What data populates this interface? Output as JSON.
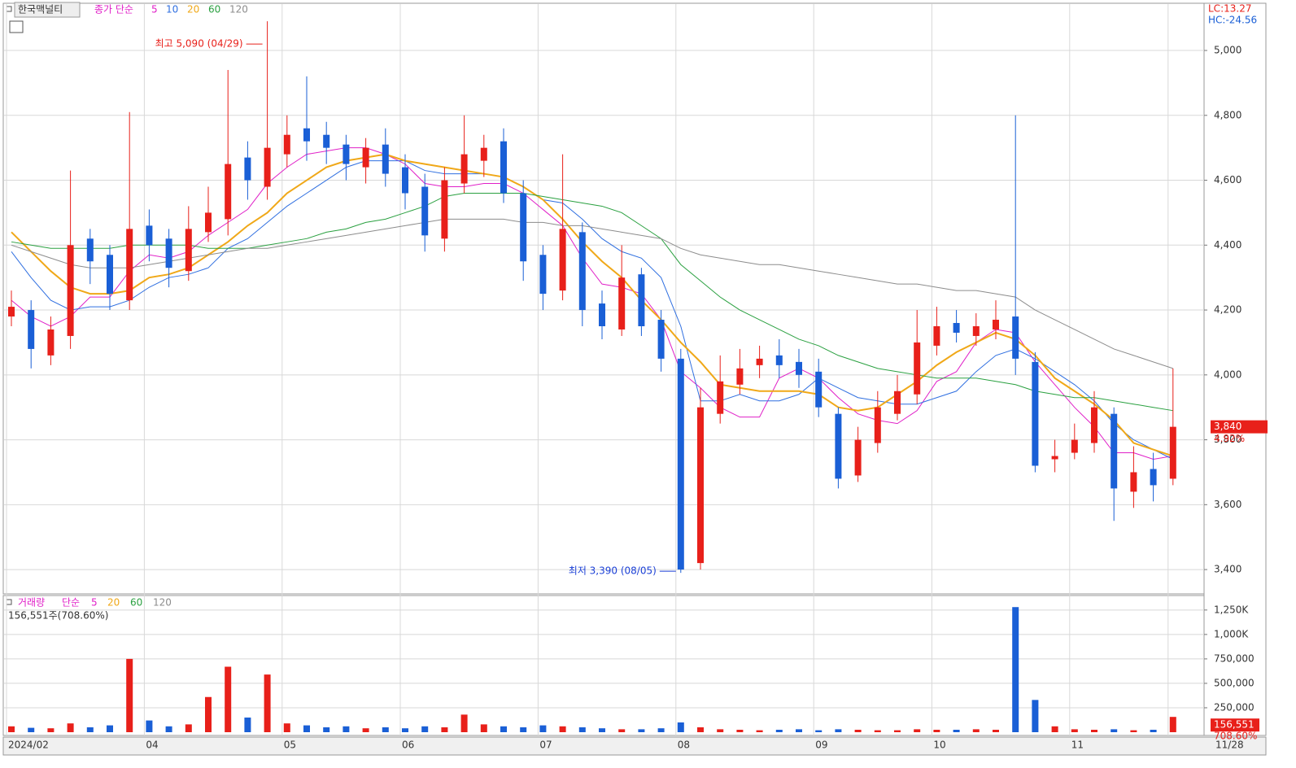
{
  "chart_data": [
    {
      "type": "candlestick",
      "name": "한국맥널티",
      "legend_title": "종가 단순",
      "categories": [
        "2024/02",
        null,
        null,
        null,
        null,
        null,
        null,
        "04",
        null,
        null,
        null,
        null,
        null,
        null,
        "05",
        null,
        null,
        null,
        null,
        null,
        "06",
        null,
        null,
        null,
        null,
        null,
        null,
        "07",
        null,
        null,
        null,
        null,
        null,
        null,
        "08",
        null,
        null,
        null,
        null,
        null,
        null,
        "09",
        null,
        null,
        null,
        null,
        null,
        "10",
        null,
        null,
        null,
        null,
        null,
        null,
        "11",
        null,
        null,
        null,
        null,
        "11/28"
      ],
      "open": [
        4180,
        4200,
        4060,
        4120,
        4420,
        4370,
        4230,
        4460,
        4420,
        4320,
        4440,
        4480,
        4670,
        4580,
        4680,
        4760,
        4740,
        4710,
        4640,
        4710,
        4640,
        4580,
        4420,
        4590,
        4660,
        4720,
        4560,
        4370,
        4260,
        4440,
        4220,
        4140,
        4310,
        4170,
        4050,
        3420,
        3880,
        3970,
        4030,
        4060,
        4040,
        4010,
        3880,
        3690,
        3790,
        3880,
        3940,
        4090,
        4160,
        4120,
        4140,
        4180,
        4040,
        3740,
        3760,
        3790,
        3880,
        3640,
        3710,
        3680
      ],
      "high": [
        4260,
        4230,
        4180,
        4630,
        4450,
        4400,
        4810,
        4510,
        4450,
        4520,
        4580,
        4940,
        4720,
        5090,
        4800,
        4920,
        4780,
        4740,
        4730,
        4760,
        4680,
        4620,
        4640,
        4800,
        4740,
        4760,
        4600,
        4400,
        4680,
        4470,
        4260,
        4400,
        4330,
        4200,
        4080,
        3960,
        4060,
        4080,
        4090,
        4110,
        4080,
        4050,
        3900,
        3840,
        3950,
        4000,
        4200,
        4210,
        4200,
        4190,
        4230,
        4800,
        4070,
        3800,
        3850,
        3950,
        3900,
        3780,
        3760,
        4020
      ],
      "low": [
        4150,
        4020,
        4030,
        4080,
        4280,
        4200,
        4200,
        4350,
        4270,
        4290,
        4410,
        4430,
        4540,
        4540,
        4640,
        4660,
        4650,
        4600,
        4590,
        4580,
        4510,
        4380,
        4380,
        4560,
        4610,
        4530,
        4290,
        4200,
        4230,
        4150,
        4110,
        4120,
        4120,
        4010,
        3390,
        3400,
        3850,
        3940,
        3990,
        3990,
        3960,
        3870,
        3650,
        3670,
        3760,
        3860,
        3910,
        4060,
        4100,
        4090,
        4110,
        4000,
        3700,
        3700,
        3740,
        3760,
        3550,
        3590,
        3610,
        3660
      ],
      "close": [
        4210,
        4080,
        4140,
        4400,
        4350,
        4250,
        4450,
        4400,
        4330,
        4450,
        4500,
        4650,
        4600,
        4700,
        4740,
        4720,
        4700,
        4650,
        4700,
        4620,
        4560,
        4430,
        4600,
        4680,
        4700,
        4560,
        4350,
        4250,
        4450,
        4200,
        4150,
        4300,
        4150,
        4050,
        3400,
        3900,
        3980,
        4020,
        4050,
        4030,
        4000,
        3900,
        3680,
        3800,
        3900,
        3950,
        4100,
        4150,
        4130,
        4150,
        4170,
        4050,
        3720,
        3750,
        3800,
        3900,
        3650,
        3700,
        3660,
        3840
      ],
      "up_color": "#e8201a",
      "down_color": "#1a5fd6",
      "series": [
        {
          "name": "5",
          "color": "#e020c8",
          "values": [
            4230,
            4180,
            4150,
            4180,
            4240,
            4240,
            4320,
            4370,
            4360,
            4380,
            4430,
            4470,
            4510,
            4590,
            4640,
            4680,
            4690,
            4700,
            4700,
            4680,
            4650,
            4590,
            4580,
            4580,
            4590,
            4590,
            4560,
            4510,
            4460,
            4360,
            4280,
            4270,
            4250,
            4170,
            4010,
            3960,
            3900,
            3870,
            3870,
            3990,
            4020,
            3990,
            3930,
            3880,
            3860,
            3850,
            3890,
            3980,
            4010,
            4100,
            4140,
            4130,
            4040,
            3970,
            3900,
            3840,
            3760,
            3760,
            3740,
            3750
          ]
        },
        {
          "name": "10",
          "color": "#2f6fe0",
          "values": [
            4380,
            4300,
            4230,
            4200,
            4210,
            4210,
            4230,
            4270,
            4300,
            4310,
            4330,
            4390,
            4420,
            4470,
            4520,
            4560,
            4600,
            4640,
            4660,
            4660,
            4660,
            4630,
            4620,
            4620,
            4620,
            4610,
            4580,
            4540,
            4530,
            4480,
            4420,
            4380,
            4360,
            4300,
            4150,
            3920,
            3920,
            3940,
            3920,
            3920,
            3940,
            3990,
            3960,
            3930,
            3920,
            3910,
            3910,
            3930,
            3950,
            4010,
            4060,
            4080,
            4050,
            4010,
            3970,
            3920,
            3850,
            3800,
            3770,
            3740
          ]
        },
        {
          "name": "20",
          "color": "#f0a818",
          "values": [
            4440,
            4380,
            4320,
            4270,
            4250,
            4250,
            4260,
            4300,
            4310,
            4330,
            4370,
            4410,
            4460,
            4500,
            4560,
            4600,
            4640,
            4660,
            4670,
            4680,
            4660,
            4650,
            4640,
            4630,
            4620,
            4610,
            4580,
            4540,
            4480,
            4410,
            4350,
            4300,
            4230,
            4170,
            4100,
            4040,
            3970,
            3960,
            3950,
            3950,
            3950,
            3940,
            3900,
            3890,
            3900,
            3940,
            3980,
            4030,
            4070,
            4100,
            4130,
            4110,
            4060,
            3990,
            3950,
            3910,
            3860,
            3790,
            3770,
            3750
          ]
        },
        {
          "name": "60",
          "color": "#2aa040",
          "values": [
            4410,
            4400,
            4390,
            4390,
            4390,
            4390,
            4400,
            4400,
            4400,
            4400,
            4390,
            4390,
            4390,
            4400,
            4410,
            4420,
            4440,
            4450,
            4470,
            4480,
            4500,
            4520,
            4550,
            4560,
            4560,
            4560,
            4560,
            4550,
            4540,
            4530,
            4520,
            4500,
            4460,
            4420,
            4340,
            4290,
            4240,
            4200,
            4170,
            4140,
            4110,
            4090,
            4060,
            4040,
            4020,
            4010,
            4000,
            3990,
            3990,
            3990,
            3980,
            3970,
            3950,
            3940,
            3930,
            3930,
            3920,
            3910,
            3900,
            3890
          ]
        },
        {
          "name": "120",
          "color": "#8c8c8c",
          "values": [
            4400,
            4380,
            4360,
            4340,
            4330,
            4330,
            4330,
            4340,
            4350,
            4360,
            4370,
            4380,
            4390,
            4390,
            4400,
            4410,
            4420,
            4430,
            4440,
            4450,
            4460,
            4470,
            4480,
            4480,
            4480,
            4480,
            4470,
            4470,
            4460,
            4460,
            4450,
            4440,
            4430,
            4420,
            4390,
            4370,
            4360,
            4350,
            4340,
            4340,
            4330,
            4320,
            4310,
            4300,
            4290,
            4280,
            4280,
            4270,
            4260,
            4260,
            4250,
            4240,
            4200,
            4170,
            4140,
            4110,
            4080,
            4060,
            4040,
            4020
          ]
        }
      ],
      "ylim": [
        3325,
        5143
      ],
      "yticks": [
        {
          "value": 3400,
          "label": "3,400"
        },
        {
          "value": 3600,
          "label": "3,600"
        },
        {
          "value": 3800,
          "label": "3,800"
        },
        {
          "value": 4000,
          "label": "4,000"
        },
        {
          "value": 4200,
          "label": "4,200"
        },
        {
          "value": 4400,
          "label": "4,400"
        },
        {
          "value": 4600,
          "label": "4,600"
        },
        {
          "value": 4800,
          "label": "4,800"
        },
        {
          "value": 5000,
          "label": "5,000"
        }
      ],
      "grid": true,
      "high_note": "최고 5,090 (04/29)",
      "low_note": "최저 3,390 (08/05)",
      "lc": "LC:13.27",
      "hc": "HC:-24.56",
      "price_tag": "3,840",
      "change_tag": "4.92%"
    },
    {
      "type": "bar",
      "name": "거래량",
      "legend_title": "단순",
      "legend_items": [
        {
          "name": "5",
          "color": "#e020c8"
        },
        {
          "name": "20",
          "color": "#f0a818"
        },
        {
          "name": "60",
          "color": "#2aa040"
        },
        {
          "name": "120",
          "color": "#8c8c8c"
        }
      ],
      "info": "156,551주(708.60%)",
      "values": [
        60000,
        45000,
        40000,
        90000,
        50000,
        70000,
        750000,
        120000,
        60000,
        80000,
        360000,
        670000,
        150000,
        590000,
        90000,
        70000,
        50000,
        60000,
        40000,
        50000,
        40000,
        60000,
        50000,
        180000,
        80000,
        60000,
        50000,
        70000,
        60000,
        50000,
        40000,
        30000,
        30000,
        40000,
        100000,
        50000,
        30000,
        25000,
        20000,
        25000,
        30000,
        20000,
        30000,
        25000,
        20000,
        20000,
        30000,
        25000,
        25000,
        30000,
        25000,
        1280000,
        330000,
        60000,
        30000,
        25000,
        30000,
        20000,
        25000,
        156551
      ],
      "ylim": [
        0,
        1390000
      ],
      "yticks": [
        {
          "value": 250000,
          "label": "250,000"
        },
        {
          "value": 500000,
          "label": "500,000"
        },
        {
          "value": 750000,
          "label": "750,000"
        },
        {
          "value": 1000000,
          "label": "1,000K"
        },
        {
          "value": 1250000,
          "label": "1,250K"
        }
      ],
      "volume_tag": "156,551",
      "ratio_tag": "708.60%"
    }
  ]
}
